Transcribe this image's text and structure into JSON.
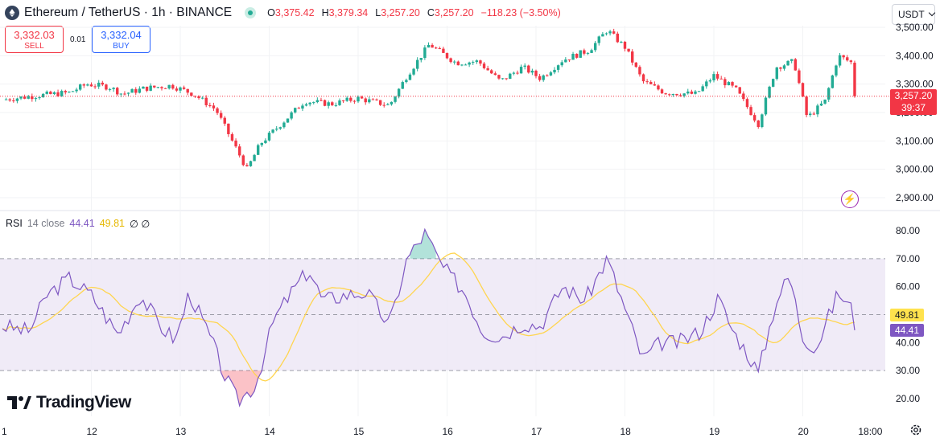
{
  "header": {
    "title": "Ethereum / TetherUS · 1h · BINANCE",
    "ohlc": [
      {
        "k": "O",
        "v": "3,375.42"
      },
      {
        "k": "H",
        "v": "3,379.34"
      },
      {
        "k": "L",
        "v": "3,257.20"
      },
      {
        "k": "C",
        "v": "3,257.20"
      },
      {
        "k": "",
        "v": "−118.23 (−3.50%)"
      }
    ],
    "currency": "USDT"
  },
  "trade": {
    "sell_price": "3,332.03",
    "sell_label": "SELL",
    "spread": "0.01",
    "buy_price": "3,332.04",
    "buy_label": "BUY"
  },
  "price_axis": {
    "ticks": [
      "3,500.00",
      "3,400.00",
      "3,300.00",
      "3,200.00",
      "3,100.00",
      "3,000.00",
      "2,900.00"
    ],
    "last_price": "3,257.20",
    "countdown": "39:37"
  },
  "rsi": {
    "name": "RSI",
    "params": "14 close",
    "value": "44.41",
    "ma_value": "49.81",
    "extra": "∅ ∅",
    "ticks": [
      "80.00",
      "70.00",
      "60.00",
      "50.00",
      "40.00",
      "30.00",
      "20.00"
    ]
  },
  "time_axis": {
    "labels": [
      "1",
      "12",
      "13",
      "14",
      "15",
      "16",
      "17",
      "18",
      "19",
      "20",
      "18:00"
    ]
  },
  "brand": "TradingView",
  "colors": {
    "up": "#22ab94",
    "down": "#f23645",
    "rsi_line": "#7e57c2",
    "rsi_ma": "#ffd54f",
    "rsi_band": "#ede7f6"
  },
  "chart_data": {
    "type": "candlestick",
    "title": "Ethereum / TetherUS · 1h · BINANCE",
    "price_ylim": [
      2900,
      3500
    ],
    "rsi_ylim": [
      20,
      80
    ],
    "rsi_bands": [
      30,
      50,
      70
    ],
    "x_start": "11 00:00",
    "hours_per_candle": 1,
    "close_series_anchors": [
      {
        "day": 11.0,
        "price": 3245
      },
      {
        "day": 11.4,
        "price": 3260
      },
      {
        "day": 11.75,
        "price": 3270
      },
      {
        "day": 11.95,
        "price": 3300
      },
      {
        "day": 12.2,
        "price": 3290
      },
      {
        "day": 12.35,
        "price": 3265
      },
      {
        "day": 12.6,
        "price": 3285
      },
      {
        "day": 12.9,
        "price": 3295
      },
      {
        "day": 13.15,
        "price": 3265
      },
      {
        "day": 13.4,
        "price": 3210
      },
      {
        "day": 13.55,
        "price": 3120
      },
      {
        "day": 13.75,
        "price": 3000
      },
      {
        "day": 13.9,
        "price": 3090
      },
      {
        "day": 14.2,
        "price": 3180
      },
      {
        "day": 14.4,
        "price": 3240
      },
      {
        "day": 14.7,
        "price": 3230
      },
      {
        "day": 15.0,
        "price": 3250
      },
      {
        "day": 15.35,
        "price": 3225
      },
      {
        "day": 15.55,
        "price": 3330
      },
      {
        "day": 15.8,
        "price": 3440
      },
      {
        "day": 16.1,
        "price": 3375
      },
      {
        "day": 16.35,
        "price": 3380
      },
      {
        "day": 16.6,
        "price": 3310
      },
      {
        "day": 16.85,
        "price": 3360
      },
      {
        "day": 17.05,
        "price": 3320
      },
      {
        "day": 17.3,
        "price": 3385
      },
      {
        "day": 17.6,
        "price": 3420
      },
      {
        "day": 17.8,
        "price": 3490
      },
      {
        "day": 18.0,
        "price": 3430
      },
      {
        "day": 18.2,
        "price": 3310
      },
      {
        "day": 18.45,
        "price": 3270
      },
      {
        "day": 18.8,
        "price": 3265
      },
      {
        "day": 19.0,
        "price": 3330
      },
      {
        "day": 19.25,
        "price": 3280
      },
      {
        "day": 19.5,
        "price": 3160
      },
      {
        "day": 19.7,
        "price": 3360
      },
      {
        "day": 19.9,
        "price": 3380
      },
      {
        "day": 20.05,
        "price": 3180
      },
      {
        "day": 20.25,
        "price": 3240
      },
      {
        "day": 20.4,
        "price": 3400
      },
      {
        "day": 20.55,
        "price": 3375
      },
      {
        "day": 20.62,
        "price": 3257.2
      }
    ],
    "rsi_anchors": [
      {
        "day": 11.0,
        "rsi": 46
      },
      {
        "day": 11.3,
        "rsi": 44
      },
      {
        "day": 11.5,
        "rsi": 57
      },
      {
        "day": 11.75,
        "rsi": 63
      },
      {
        "day": 12.0,
        "rsi": 57
      },
      {
        "day": 12.3,
        "rsi": 43
      },
      {
        "day": 12.55,
        "rsi": 57
      },
      {
        "day": 12.8,
        "rsi": 45
      },
      {
        "day": 12.95,
        "rsi": 41
      },
      {
        "day": 13.1,
        "rsi": 58
      },
      {
        "day": 13.35,
        "rsi": 41
      },
      {
        "day": 13.5,
        "rsi": 28
      },
      {
        "day": 13.65,
        "rsi": 19
      },
      {
        "day": 13.85,
        "rsi": 25
      },
      {
        "day": 14.05,
        "rsi": 48
      },
      {
        "day": 14.25,
        "rsi": 58
      },
      {
        "day": 14.45,
        "rsi": 66
      },
      {
        "day": 14.6,
        "rsi": 55
      },
      {
        "day": 14.85,
        "rsi": 57
      },
      {
        "day": 15.1,
        "rsi": 58
      },
      {
        "day": 15.35,
        "rsi": 46
      },
      {
        "day": 15.55,
        "rsi": 70
      },
      {
        "day": 15.75,
        "rsi": 79
      },
      {
        "day": 15.95,
        "rsi": 67
      },
      {
        "day": 16.2,
        "rsi": 58
      },
      {
        "day": 16.4,
        "rsi": 44
      },
      {
        "day": 16.6,
        "rsi": 42
      },
      {
        "day": 16.85,
        "rsi": 47
      },
      {
        "day": 17.05,
        "rsi": 46
      },
      {
        "day": 17.3,
        "rsi": 60
      },
      {
        "day": 17.55,
        "rsi": 55
      },
      {
        "day": 17.8,
        "rsi": 70
      },
      {
        "day": 18.0,
        "rsi": 52
      },
      {
        "day": 18.2,
        "rsi": 34
      },
      {
        "day": 18.4,
        "rsi": 40
      },
      {
        "day": 18.6,
        "rsi": 40
      },
      {
        "day": 18.85,
        "rsi": 44
      },
      {
        "day": 19.05,
        "rsi": 56
      },
      {
        "day": 19.2,
        "rsi": 45
      },
      {
        "day": 19.4,
        "rsi": 35
      },
      {
        "day": 19.5,
        "rsi": 29
      },
      {
        "day": 19.7,
        "rsi": 55
      },
      {
        "day": 19.85,
        "rsi": 64
      },
      {
        "day": 20.0,
        "rsi": 42
      },
      {
        "day": 20.15,
        "rsi": 38
      },
      {
        "day": 20.4,
        "rsi": 58
      },
      {
        "day": 20.55,
        "rsi": 52
      },
      {
        "day": 20.62,
        "rsi": 44.41
      }
    ]
  }
}
